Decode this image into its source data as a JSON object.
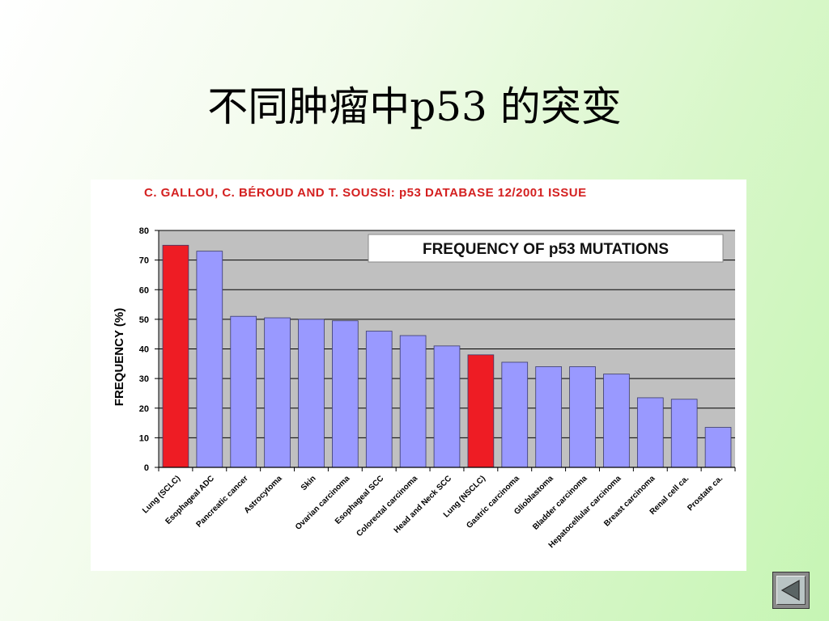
{
  "slide": {
    "title": "不同肿瘤中p53 的突变"
  },
  "nav": {
    "back_icon": "triangle-left-icon"
  },
  "chart_data": {
    "type": "bar",
    "source": "C. GALLOU, C. BÉROUD AND T. SOUSSI: p53 DATABASE 12/2001 ISSUE",
    "title": "FREQUENCY OF p53 MUTATIONS",
    "xlabel": "",
    "ylabel": "FREQUENCY (%)",
    "ylim": [
      0,
      80
    ],
    "yticks": [
      0,
      10,
      20,
      30,
      40,
      50,
      60,
      70,
      80
    ],
    "grid": true,
    "categories": [
      "Lung (SCLC)",
      "Esophageal ADC",
      "Pancreatic cancer",
      "Astrocytoma",
      "Skin",
      "Ovarian carcinoma",
      "Esophageal SCC",
      "Colorectal carcinoma",
      "Head and Neck SCC",
      "Lung (NSCLC)",
      "Gastric carcinoma",
      "Glioblastoma",
      "Bladder carcinoma",
      "Hepatocellular carcinoma",
      "Breast carcinoma",
      "Renal cell ca.",
      "Prostate ca."
    ],
    "values": [
      75,
      73,
      51,
      50.5,
      50,
      49.5,
      46,
      44.5,
      41,
      38,
      35.5,
      34,
      34,
      31.5,
      23.5,
      23,
      13.5
    ],
    "highlighted": [
      0,
      9
    ],
    "colors": {
      "bar": "#9999ff",
      "highlight": "#ee1c24",
      "plot_bg": "#c0c0c0",
      "source_text": "#d42020"
    }
  }
}
